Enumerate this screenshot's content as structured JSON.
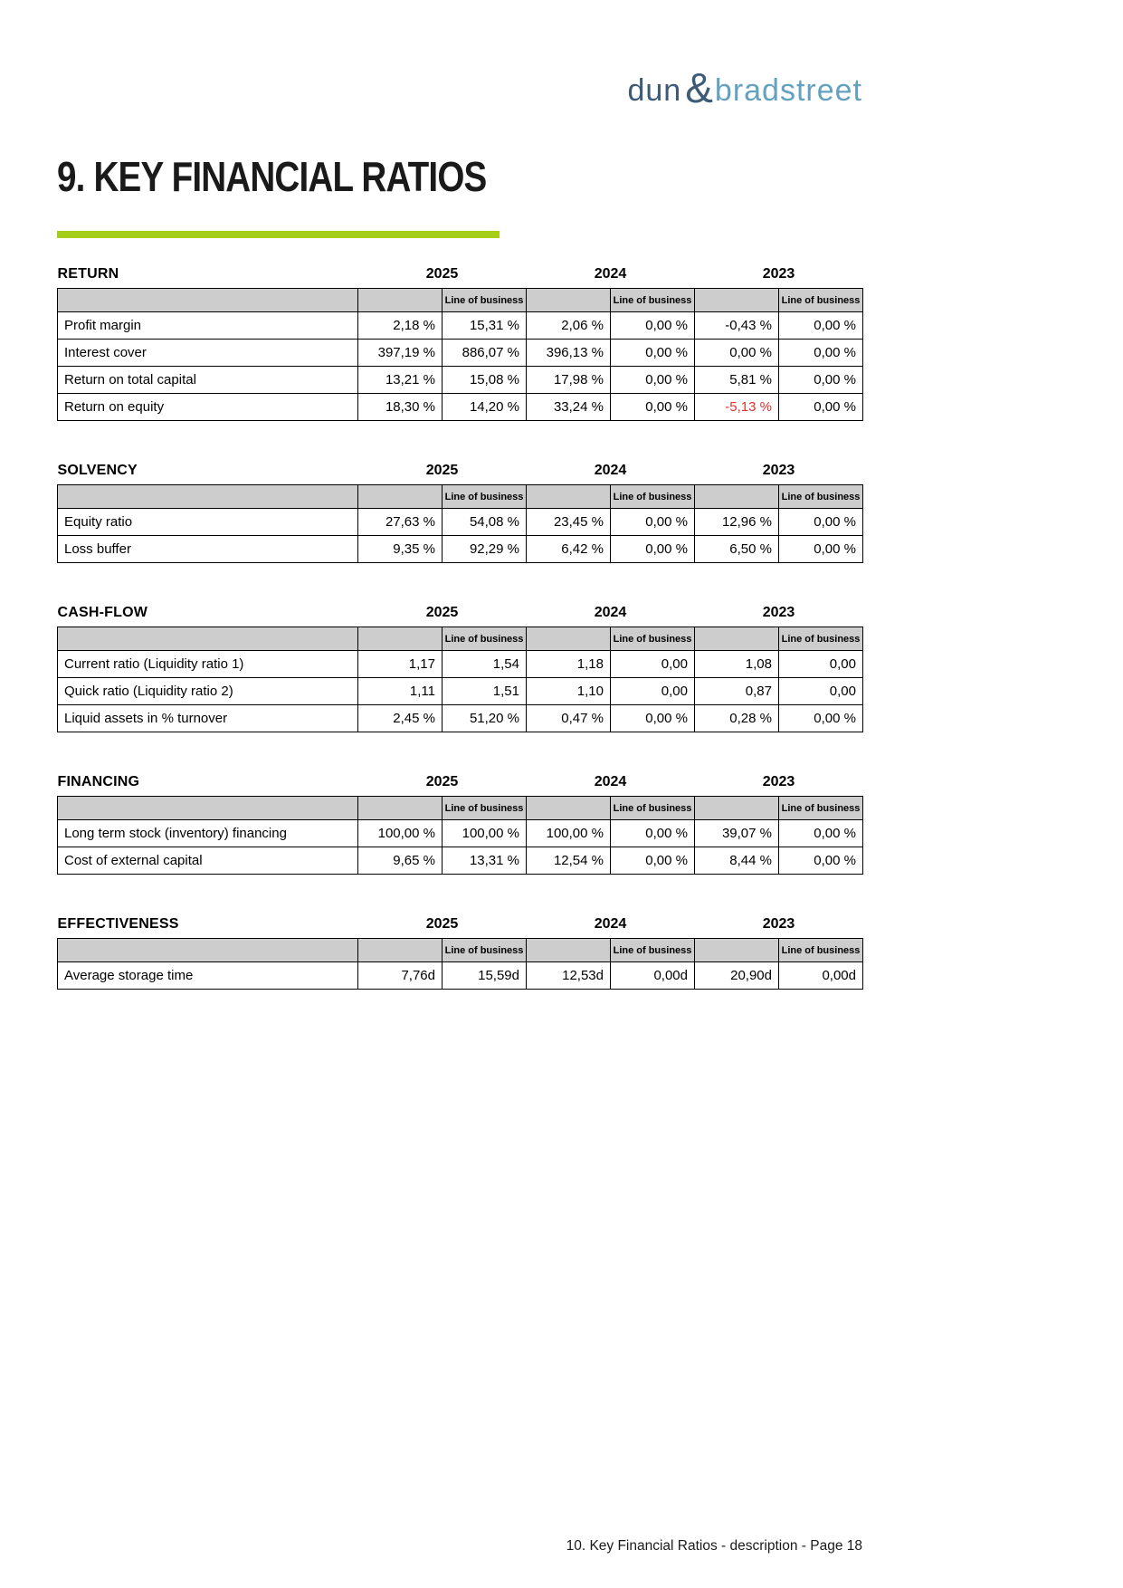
{
  "logo": {
    "part1": "dun",
    "amp": "&",
    "part2": "bradstreet"
  },
  "page_title": "9. KEY FINANCIAL RATIOS",
  "footer": "10. Key Financial Ratios - description - Page 18",
  "years": [
    "2025",
    "2024",
    "2023"
  ],
  "line_of_business_label": "Line of business",
  "colors": {
    "brand_dark": "#3d5b76",
    "brand_light": "#64a1c1",
    "accent_green": "#a4cd17",
    "negative_red": "#e03030",
    "header_gray": "#cdcdcd"
  },
  "tables": [
    {
      "section": "RETURN",
      "rows": [
        {
          "label": "Profit margin",
          "values": [
            "2,18 %",
            "15,31 %",
            "2,06 %",
            "0,00 %",
            "-0,43 %",
            "0,00 %"
          ],
          "red_indices": []
        },
        {
          "label": "Interest cover",
          "values": [
            "397,19 %",
            "886,07 %",
            "396,13 %",
            "0,00 %",
            "0,00 %",
            "0,00 %"
          ],
          "red_indices": []
        },
        {
          "label": "Return on total capital",
          "values": [
            "13,21 %",
            "15,08 %",
            "17,98 %",
            "0,00 %",
            "5,81 %",
            "0,00 %"
          ],
          "red_indices": []
        },
        {
          "label": "Return on equity",
          "values": [
            "18,30 %",
            "14,20 %",
            "33,24 %",
            "0,00 %",
            "-5,13 %",
            "0,00 %"
          ],
          "red_indices": [
            4
          ]
        }
      ]
    },
    {
      "section": "SOLVENCY",
      "rows": [
        {
          "label": "Equity ratio",
          "values": [
            "27,63 %",
            "54,08 %",
            "23,45 %",
            "0,00 %",
            "12,96 %",
            "0,00 %"
          ],
          "red_indices": []
        },
        {
          "label": "Loss buffer",
          "values": [
            "9,35 %",
            "92,29 %",
            "6,42 %",
            "0,00 %",
            "6,50 %",
            "0,00 %"
          ],
          "red_indices": []
        }
      ]
    },
    {
      "section": "CASH-FLOW",
      "rows": [
        {
          "label": "Current ratio (Liquidity ratio 1)",
          "values": [
            "1,17",
            "1,54",
            "1,18",
            "0,00",
            "1,08",
            "0,00"
          ],
          "red_indices": []
        },
        {
          "label": "Quick ratio (Liquidity ratio 2)",
          "values": [
            "1,11",
            "1,51",
            "1,10",
            "0,00",
            "0,87",
            "0,00"
          ],
          "red_indices": []
        },
        {
          "label": "Liquid assets in % turnover",
          "values": [
            "2,45 %",
            "51,20 %",
            "0,47 %",
            "0,00 %",
            "0,28 %",
            "0,00 %"
          ],
          "red_indices": []
        }
      ]
    },
    {
      "section": "FINANCING",
      "rows": [
        {
          "label": "Long term stock (inventory) financing",
          "values": [
            "100,00 %",
            "100,00 %",
            "100,00 %",
            "0,00 %",
            "39,07 %",
            "0,00 %"
          ],
          "red_indices": []
        },
        {
          "label": "Cost of external capital",
          "values": [
            "9,65 %",
            "13,31 %",
            "12,54 %",
            "0,00 %",
            "8,44 %",
            "0,00 %"
          ],
          "red_indices": []
        }
      ]
    },
    {
      "section": "EFFECTIVENESS",
      "rows": [
        {
          "label": "Average storage time",
          "values": [
            "7,76d",
            "15,59d",
            "12,53d",
            "0,00d",
            "20,90d",
            "0,00d"
          ],
          "red_indices": []
        }
      ]
    }
  ]
}
